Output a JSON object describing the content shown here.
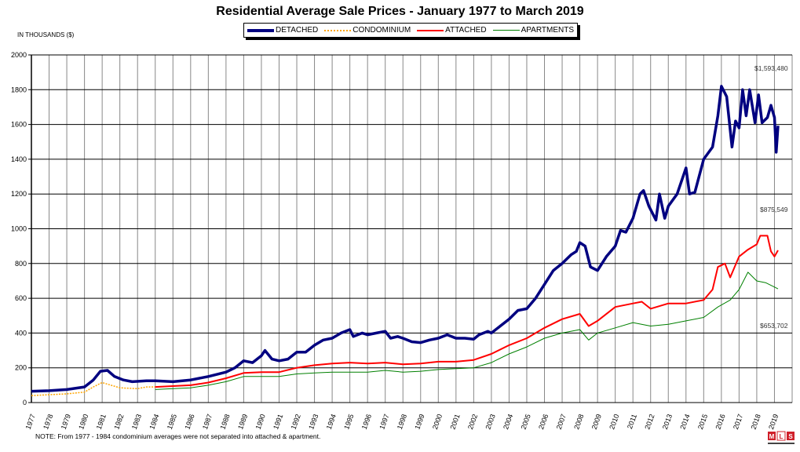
{
  "chart_data": {
    "type": "line",
    "title": "Residential Average Sale Prices  -  January 1977 to March 2019",
    "ylabel": "IN THOUSANDS ($)",
    "xlabel": "",
    "ylim": [
      0,
      2000
    ],
    "yticks": [
      0,
      200,
      400,
      600,
      800,
      1000,
      1200,
      1400,
      1600,
      1800,
      2000
    ],
    "xticks": [
      "1977",
      "1978",
      "1979",
      "1980",
      "1981",
      "1982",
      "1983",
      "1984",
      "1985",
      "1986",
      "1987",
      "1988",
      "1989",
      "1990",
      "1991",
      "1992",
      "1993",
      "1994",
      "1995",
      "1996",
      "1997",
      "1998",
      "1999",
      "2000",
      "2001",
      "2002",
      "2003",
      "2004",
      "2005",
      "2006",
      "2007",
      "2008",
      "2009",
      "2010",
      "2011",
      "2012",
      "2013",
      "2014",
      "2015",
      "2016",
      "2017",
      "2018",
      "2019"
    ],
    "grid": true,
    "legend_position": "top-center",
    "series": [
      {
        "name": "DETACHED",
        "color": "#000080",
        "style": "solid-thick",
        "points": [
          [
            1977,
            65
          ],
          [
            1978,
            68
          ],
          [
            1979,
            75
          ],
          [
            1980,
            90
          ],
          [
            1980.5,
            130
          ],
          [
            1980.9,
            180
          ],
          [
            1981.3,
            185
          ],
          [
            1981.7,
            150
          ],
          [
            1982.2,
            130
          ],
          [
            1982.7,
            120
          ],
          [
            1983.5,
            125
          ],
          [
            1984,
            125
          ],
          [
            1985,
            120
          ],
          [
            1986,
            130
          ],
          [
            1987,
            150
          ],
          [
            1988,
            175
          ],
          [
            1988.5,
            200
          ],
          [
            1989,
            240
          ],
          [
            1989.5,
            230
          ],
          [
            1990,
            270
          ],
          [
            1990.2,
            300
          ],
          [
            1990.6,
            250
          ],
          [
            1991,
            240
          ],
          [
            1991.5,
            250
          ],
          [
            1992,
            290
          ],
          [
            1992.5,
            290
          ],
          [
            1993,
            330
          ],
          [
            1993.5,
            360
          ],
          [
            1994,
            370
          ],
          [
            1994.5,
            400
          ],
          [
            1995,
            420
          ],
          [
            1995.2,
            380
          ],
          [
            1995.7,
            400
          ],
          [
            1996,
            390
          ],
          [
            1996.5,
            400
          ],
          [
            1997,
            410
          ],
          [
            1997.3,
            370
          ],
          [
            1997.7,
            380
          ],
          [
            1998,
            370
          ],
          [
            1998.5,
            350
          ],
          [
            1999,
            345
          ],
          [
            1999.5,
            360
          ],
          [
            2000,
            370
          ],
          [
            2000.5,
            390
          ],
          [
            2001,
            370
          ],
          [
            2001.5,
            370
          ],
          [
            2002,
            365
          ],
          [
            2002.3,
            390
          ],
          [
            2002.8,
            410
          ],
          [
            2003,
            400
          ],
          [
            2003.5,
            440
          ],
          [
            2004,
            480
          ],
          [
            2004.5,
            530
          ],
          [
            2005,
            540
          ],
          [
            2005.5,
            600
          ],
          [
            2006,
            680
          ],
          [
            2006.5,
            760
          ],
          [
            2007,
            800
          ],
          [
            2007.5,
            850
          ],
          [
            2007.8,
            870
          ],
          [
            2008,
            920
          ],
          [
            2008.3,
            900
          ],
          [
            2008.6,
            780
          ],
          [
            2009,
            760
          ],
          [
            2009.5,
            840
          ],
          [
            2010,
            900
          ],
          [
            2010.3,
            990
          ],
          [
            2010.6,
            980
          ],
          [
            2011,
            1060
          ],
          [
            2011.4,
            1200
          ],
          [
            2011.6,
            1220
          ],
          [
            2011.9,
            1130
          ],
          [
            2012.3,
            1050
          ],
          [
            2012.5,
            1200
          ],
          [
            2012.8,
            1060
          ],
          [
            2013,
            1130
          ],
          [
            2013.5,
            1200
          ],
          [
            2014,
            1350
          ],
          [
            2014.2,
            1200
          ],
          [
            2014.5,
            1210
          ],
          [
            2015,
            1400
          ],
          [
            2015.5,
            1470
          ],
          [
            2015.8,
            1650
          ],
          [
            2016,
            1820
          ],
          [
            2016.3,
            1760
          ],
          [
            2016.6,
            1470
          ],
          [
            2016.8,
            1620
          ],
          [
            2017,
            1580
          ],
          [
            2017.2,
            1800
          ],
          [
            2017.4,
            1650
          ],
          [
            2017.6,
            1800
          ],
          [
            2017.9,
            1610
          ],
          [
            2018.1,
            1770
          ],
          [
            2018.3,
            1610
          ],
          [
            2018.6,
            1640
          ],
          [
            2018.8,
            1710
          ],
          [
            2019,
            1640
          ],
          [
            2019.1,
            1440
          ],
          [
            2019.2,
            1593
          ]
        ]
      },
      {
        "name": "CONDOMINIUM",
        "color": "#FFA500",
        "style": "dotted",
        "points": [
          [
            1977,
            40
          ],
          [
            1978,
            45
          ],
          [
            1979,
            50
          ],
          [
            1980,
            60
          ],
          [
            1980.5,
            90
          ],
          [
            1981,
            115
          ],
          [
            1981.5,
            100
          ],
          [
            1982,
            85
          ],
          [
            1983,
            80
          ],
          [
            1983.5,
            90
          ],
          [
            1984,
            90
          ]
        ]
      },
      {
        "name": "ATTACHED",
        "color": "#FF0000",
        "style": "solid",
        "points": [
          [
            1984,
            90
          ],
          [
            1985,
            95
          ],
          [
            1986,
            100
          ],
          [
            1987,
            115
          ],
          [
            1988,
            140
          ],
          [
            1989,
            170
          ],
          [
            1990,
            175
          ],
          [
            1991,
            175
          ],
          [
            1992,
            200
          ],
          [
            1993,
            215
          ],
          [
            1994,
            225
          ],
          [
            1995,
            230
          ],
          [
            1996,
            225
          ],
          [
            1997,
            230
          ],
          [
            1998,
            220
          ],
          [
            1999,
            225
          ],
          [
            2000,
            235
          ],
          [
            2001,
            235
          ],
          [
            2002,
            245
          ],
          [
            2003,
            280
          ],
          [
            2004,
            330
          ],
          [
            2005,
            370
          ],
          [
            2006,
            430
          ],
          [
            2007,
            480
          ],
          [
            2008,
            510
          ],
          [
            2008.5,
            440
          ],
          [
            2009,
            470
          ],
          [
            2010,
            550
          ],
          [
            2011,
            570
          ],
          [
            2011.5,
            580
          ],
          [
            2012,
            540
          ],
          [
            2013,
            570
          ],
          [
            2014,
            570
          ],
          [
            2015,
            590
          ],
          [
            2015.5,
            650
          ],
          [
            2015.8,
            780
          ],
          [
            2016.2,
            800
          ],
          [
            2016.5,
            720
          ],
          [
            2017,
            840
          ],
          [
            2017.5,
            880
          ],
          [
            2018,
            910
          ],
          [
            2018.2,
            960
          ],
          [
            2018.6,
            960
          ],
          [
            2018.8,
            870
          ],
          [
            2019,
            840
          ],
          [
            2019.2,
            876
          ]
        ]
      },
      {
        "name": "APARTMENTS",
        "color": "#008000",
        "style": "solid-thin",
        "points": [
          [
            1984,
            75
          ],
          [
            1985,
            80
          ],
          [
            1986,
            85
          ],
          [
            1987,
            100
          ],
          [
            1988,
            120
          ],
          [
            1989,
            150
          ],
          [
            1990,
            150
          ],
          [
            1991,
            150
          ],
          [
            1992,
            165
          ],
          [
            1993,
            170
          ],
          [
            1994,
            175
          ],
          [
            1995,
            175
          ],
          [
            1996,
            175
          ],
          [
            1997,
            185
          ],
          [
            1998,
            175
          ],
          [
            1999,
            180
          ],
          [
            2000,
            190
          ],
          [
            2001,
            195
          ],
          [
            2002,
            200
          ],
          [
            2003,
            230
          ],
          [
            2004,
            280
          ],
          [
            2005,
            320
          ],
          [
            2006,
            370
          ],
          [
            2007,
            400
          ],
          [
            2008,
            420
          ],
          [
            2008.5,
            360
          ],
          [
            2009,
            400
          ],
          [
            2010,
            430
          ],
          [
            2011,
            460
          ],
          [
            2012,
            440
          ],
          [
            2013,
            450
          ],
          [
            2014,
            470
          ],
          [
            2015,
            490
          ],
          [
            2015.8,
            550
          ],
          [
            2016.5,
            590
          ],
          [
            2017,
            650
          ],
          [
            2017.5,
            750
          ],
          [
            2018,
            700
          ],
          [
            2018.5,
            690
          ],
          [
            2019.2,
            654
          ]
        ]
      }
    ],
    "annotations": {
      "detached_last": "$1,593,480",
      "attached_last": "$875,549",
      "apartments_last": "$653,702"
    },
    "note": "NOTE:  From 1977 - 1984 condominium averages were not separated into attached & apartment.",
    "logo_text": "MLS MULTIPLE LISTING SERVICE"
  }
}
